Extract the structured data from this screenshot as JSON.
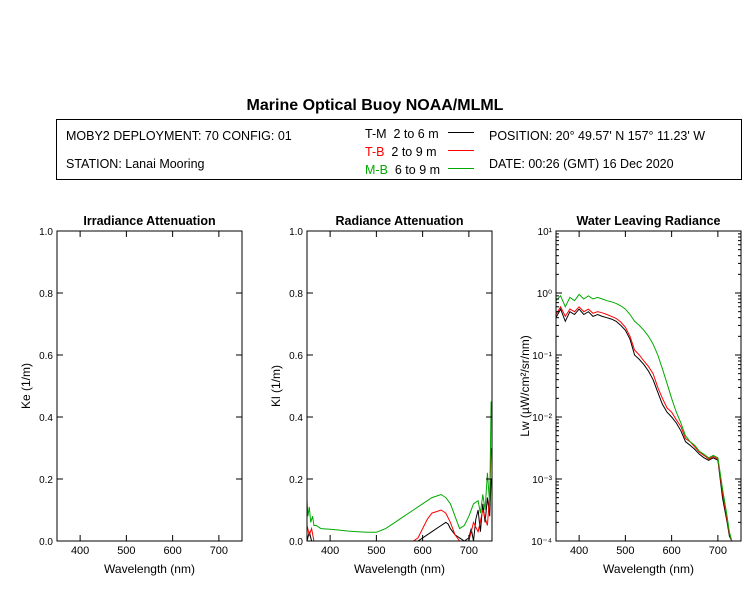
{
  "title": "Marine Optical Buoy NOAA/MLML",
  "info": {
    "deployment": "MOBY2 DEPLOYMENT: 70 CONFIG: 01",
    "station": "STATION: Lanai Mooring",
    "position": "POSITION: 20° 49.57' N   157° 11.23' W",
    "date": "DATE: 00:26 (GMT) 16 Dec 2020"
  },
  "legend": [
    {
      "name": "T-M",
      "range": "2 to 6  m",
      "color": "#000000"
    },
    {
      "name": "T-B",
      "range": "2 to 9  m",
      "color": "#ff0000"
    },
    {
      "name": "M-B",
      "range": "6 to 9  m",
      "color": "#00aa00"
    }
  ],
  "chart_data": [
    {
      "type": "line",
      "title": "Irradiance Attenuation",
      "xlabel": "Wavelength (nm)",
      "ylabel": "Ke  (1/m)",
      "xlim": [
        350,
        750
      ],
      "ylim": [
        0,
        1.0
      ],
      "xticks": [
        "400",
        "500",
        "600",
        "700"
      ],
      "yticks": [
        "0.0",
        "0.2",
        "0.4",
        "0.6",
        "0.8",
        "1.0"
      ],
      "series": []
    },
    {
      "type": "line",
      "title": "Radiance Attenuation",
      "xlabel": "Wavelength (nm)",
      "ylabel": "Kl  (1/m)",
      "xlim": [
        350,
        750
      ],
      "ylim": [
        0,
        1.0
      ],
      "xticks": [
        "400",
        "500",
        "600",
        "700"
      ],
      "yticks": [
        "0.0",
        "0.2",
        "0.4",
        "0.6",
        "0.8",
        "1.0"
      ],
      "series": [
        {
          "color": "#000000",
          "x": [
            350,
            355,
            360,
            370,
            590,
            600,
            620,
            640,
            650,
            655,
            660,
            665,
            670,
            680,
            690,
            700,
            705,
            710,
            715,
            720,
            725,
            730,
            735,
            740,
            745,
            748
          ],
          "y": [
            0.0,
            0.03,
            0.0,
            0.0,
            0.0,
            0.01,
            0.03,
            0.05,
            0.06,
            0.055,
            0.04,
            0.03,
            0.02,
            0.01,
            0.0,
            0.01,
            0.04,
            0.0,
            0.07,
            0.1,
            0.03,
            0.12,
            0.06,
            0.14,
            0.08,
            0.2
          ]
        },
        {
          "color": "#ff0000",
          "x": [
            350,
            355,
            360,
            365,
            370,
            380,
            400,
            500,
            550,
            580,
            590,
            600,
            610,
            620,
            630,
            640,
            650,
            660,
            665,
            670,
            680,
            690,
            700,
            710,
            720,
            730,
            740,
            745,
            748
          ],
          "y": [
            0.05,
            0.02,
            0.04,
            0.0,
            0.0,
            0.0,
            0.0,
            0.0,
            0.0,
            0.0,
            0.01,
            0.04,
            0.07,
            0.09,
            0.095,
            0.1,
            0.09,
            0.06,
            0.04,
            0.02,
            0.0,
            0.0,
            0.0,
            0.06,
            0.03,
            0.1,
            0.05,
            0.15,
            0.3
          ]
        },
        {
          "color": "#00aa00",
          "x": [
            350,
            352,
            355,
            358,
            362,
            365,
            370,
            380,
            400,
            420,
            440,
            460,
            480,
            500,
            520,
            540,
            560,
            580,
            600,
            610,
            620,
            630,
            640,
            650,
            660,
            670,
            675,
            680,
            690,
            700,
            710,
            720,
            725,
            730,
            735,
            740,
            745,
            748
          ],
          "y": [
            0.13,
            0.08,
            0.11,
            0.06,
            0.08,
            0.05,
            0.05,
            0.04,
            0.038,
            0.035,
            0.032,
            0.03,
            0.028,
            0.028,
            0.04,
            0.06,
            0.08,
            0.1,
            0.12,
            0.13,
            0.14,
            0.145,
            0.15,
            0.14,
            0.12,
            0.08,
            0.06,
            0.04,
            0.05,
            0.08,
            0.12,
            0.13,
            0.09,
            0.15,
            0.1,
            0.22,
            0.12,
            0.45
          ]
        }
      ]
    },
    {
      "type": "line",
      "title": "Water Leaving Radiance",
      "xlabel": "Wavelength (nm)",
      "ylabel": "Lw  (µW/cm²/sr/nm)",
      "xlim": [
        350,
        750
      ],
      "ylim": [
        0.0001,
        10
      ],
      "yscale": "log",
      "xticks": [
        "400",
        "500",
        "600",
        "700"
      ],
      "yticks": [
        "10⁻⁴",
        "10⁻³",
        "10⁻²",
        "10⁻¹",
        "10⁰",
        "10¹"
      ],
      "series": [
        {
          "color": "#000000",
          "x": [
            350,
            360,
            370,
            380,
            390,
            400,
            410,
            420,
            430,
            440,
            450,
            460,
            470,
            480,
            490,
            500,
            510,
            520,
            530,
            540,
            550,
            560,
            570,
            580,
            590,
            600,
            610,
            620,
            630,
            640,
            650,
            660,
            670,
            680,
            690,
            700,
            710,
            720,
            725,
            730
          ],
          "y": [
            0.4,
            0.55,
            0.35,
            0.5,
            0.45,
            0.55,
            0.45,
            0.5,
            0.42,
            0.45,
            0.42,
            0.4,
            0.38,
            0.35,
            0.3,
            0.25,
            0.18,
            0.1,
            0.085,
            0.07,
            0.055,
            0.04,
            0.025,
            0.016,
            0.012,
            0.01,
            0.008,
            0.006,
            0.004,
            0.0035,
            0.003,
            0.0025,
            0.0022,
            0.002,
            0.0022,
            0.002,
            0.0005,
            0.0002,
            0.00012,
            0.0001
          ]
        },
        {
          "color": "#ff0000",
          "x": [
            350,
            360,
            370,
            380,
            390,
            400,
            410,
            420,
            430,
            440,
            450,
            460,
            470,
            480,
            490,
            500,
            510,
            520,
            530,
            540,
            550,
            560,
            570,
            580,
            590,
            600,
            610,
            620,
            630,
            640,
            650,
            660,
            670,
            680,
            690,
            700,
            710,
            720,
            725,
            730
          ],
          "y": [
            0.45,
            0.6,
            0.42,
            0.55,
            0.5,
            0.6,
            0.5,
            0.55,
            0.47,
            0.5,
            0.48,
            0.45,
            0.42,
            0.39,
            0.34,
            0.28,
            0.2,
            0.12,
            0.1,
            0.08,
            0.065,
            0.05,
            0.03,
            0.02,
            0.014,
            0.012,
            0.009,
            0.007,
            0.0045,
            0.004,
            0.0033,
            0.0027,
            0.0024,
            0.0021,
            0.0023,
            0.0021,
            0.0006,
            0.00022,
            0.00013,
            0.0001
          ]
        },
        {
          "color": "#00aa00",
          "x": [
            350,
            360,
            370,
            380,
            390,
            400,
            410,
            420,
            430,
            440,
            450,
            460,
            470,
            480,
            490,
            500,
            510,
            520,
            530,
            540,
            550,
            560,
            570,
            580,
            590,
            600,
            610,
            620,
            630,
            640,
            650,
            660,
            670,
            680,
            690,
            700,
            710,
            720,
            725,
            730
          ],
          "y": [
            0.75,
            0.9,
            0.6,
            0.85,
            0.75,
            0.95,
            0.8,
            0.9,
            0.8,
            0.85,
            0.8,
            0.75,
            0.72,
            0.68,
            0.62,
            0.55,
            0.45,
            0.35,
            0.3,
            0.25,
            0.2,
            0.15,
            0.1,
            0.06,
            0.035,
            0.02,
            0.012,
            0.008,
            0.005,
            0.004,
            0.0035,
            0.0028,
            0.0025,
            0.0022,
            0.0024,
            0.0022,
            0.0007,
            0.00025,
            0.00014,
            0.0001
          ]
        }
      ]
    }
  ]
}
